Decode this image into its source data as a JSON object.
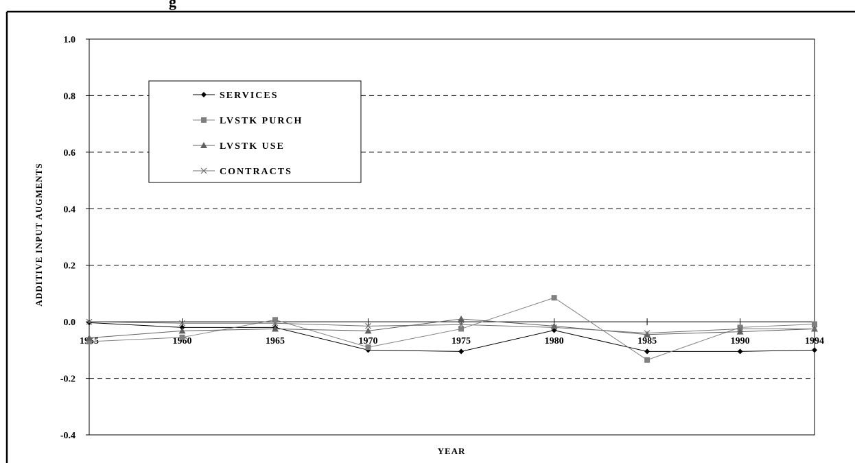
{
  "header_fragment": "g",
  "chart_data": {
    "type": "line",
    "title": "",
    "xlabel": "YEAR",
    "ylabel": "ADDITIVE INPUT AUGMENTS",
    "x": [
      1955,
      1960,
      1965,
      1970,
      1975,
      1980,
      1985,
      1990,
      1994
    ],
    "x_tick_labels": [
      "1955",
      "1960",
      "1965",
      "1970",
      "1975",
      "1980",
      "1985",
      "1990",
      "1994"
    ],
    "ylim": [
      -0.4,
      1.0
    ],
    "y_ticks": [
      -0.4,
      -0.2,
      0.0,
      0.2,
      0.4,
      0.6,
      0.8,
      1.0
    ],
    "y_tick_labels": [
      "-0.4",
      "-0.2",
      "0.0",
      "0.2",
      "0.4",
      "0.6",
      "0.8",
      "1.0"
    ],
    "grid": "horizontal dashed",
    "legend_position": "top-left",
    "series": [
      {
        "name": "SERVICES",
        "marker": "diamond",
        "color": "#000000",
        "values": [
          -0.003,
          -0.02,
          -0.02,
          -0.1,
          -0.105,
          -0.03,
          -0.105,
          -0.105,
          -0.1
        ]
      },
      {
        "name": "LVSTK PURCH",
        "marker": "square",
        "color": "#808080",
        "values": [
          -0.07,
          -0.055,
          0.007,
          -0.09,
          -0.025,
          0.085,
          -0.135,
          -0.02,
          -0.008
        ]
      },
      {
        "name": "LVSTK USE",
        "marker": "triangle",
        "color": "#606060",
        "values": [
          -0.057,
          -0.032,
          -0.025,
          -0.032,
          0.01,
          -0.015,
          -0.045,
          -0.035,
          -0.025
        ]
      },
      {
        "name": "CONTRACTS",
        "marker": "x",
        "color": "#707070",
        "values": [
          0.0,
          -0.005,
          -0.005,
          -0.015,
          -0.01,
          -0.02,
          -0.04,
          -0.025,
          -0.025
        ]
      }
    ]
  }
}
